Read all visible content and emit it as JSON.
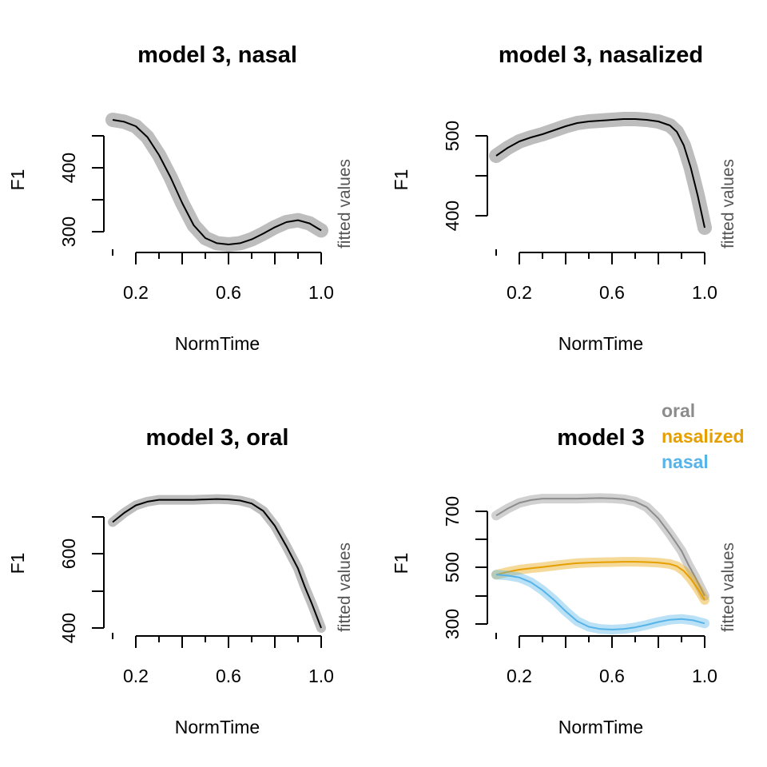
{
  "colors": {
    "oral": "#8c8c8c",
    "nasalized": "#e69f00",
    "nasal": "#56b4e9",
    "line": "#000000",
    "band": "#bdbdbd"
  },
  "chart_data": [
    {
      "type": "line",
      "title": "model 3, nasal",
      "xlabel": "NormTime",
      "ylabel": "F1",
      "side_label": "fitted values",
      "xlim": [
        0.1,
        1.0
      ],
      "ylim": [
        270,
        480
      ],
      "xticks": [
        "0.2",
        "0.6",
        "1.0"
      ],
      "yticks": [
        "300",
        "400"
      ],
      "series": [
        {
          "color_key": "line",
          "band_key": "band",
          "band_width": 8,
          "x": [
            0.1,
            0.15,
            0.2,
            0.25,
            0.3,
            0.35,
            0.4,
            0.45,
            0.5,
            0.55,
            0.6,
            0.65,
            0.7,
            0.75,
            0.8,
            0.85,
            0.9,
            0.95,
            1.0
          ],
          "y": [
            475,
            472,
            465,
            448,
            420,
            385,
            345,
            310,
            290,
            282,
            280,
            282,
            288,
            297,
            307,
            315,
            318,
            313,
            302
          ]
        }
      ]
    },
    {
      "type": "line",
      "title": "model 3, nasalized",
      "xlabel": "NormTime",
      "ylabel": "F1",
      "side_label": "fitted values",
      "xlim": [
        0.1,
        1.0
      ],
      "ylim": [
        370,
        530
      ],
      "xticks": [
        "0.2",
        "0.6",
        "1.0"
      ],
      "yticks": [
        "400",
        "500"
      ],
      "series": [
        {
          "color_key": "line",
          "band_key": "band",
          "band_width": 8,
          "x": [
            0.1,
            0.15,
            0.2,
            0.25,
            0.3,
            0.35,
            0.4,
            0.45,
            0.5,
            0.55,
            0.6,
            0.65,
            0.7,
            0.75,
            0.8,
            0.85,
            0.88,
            0.91,
            0.94,
            0.97,
            1.0
          ],
          "y": [
            475,
            485,
            493,
            498,
            502,
            507,
            512,
            516,
            518,
            519,
            520,
            521,
            521,
            520,
            518,
            513,
            505,
            488,
            460,
            425,
            385
          ]
        }
      ]
    },
    {
      "type": "line",
      "title": "model 3, oral",
      "xlabel": "NormTime",
      "ylabel": "F1",
      "side_label": "fitted values",
      "xlim": [
        0.1,
        1.0
      ],
      "ylim": [
        400,
        780
      ],
      "xticks": [
        "0.2",
        "0.6",
        "1.0"
      ],
      "yticks": [
        "400",
        "600"
      ],
      "series": [
        {
          "color_key": "line",
          "band_key": "band",
          "band_width": 5,
          "x": [
            0.1,
            0.15,
            0.2,
            0.25,
            0.3,
            0.35,
            0.4,
            0.45,
            0.5,
            0.55,
            0.6,
            0.65,
            0.7,
            0.75,
            0.8,
            0.85,
            0.9,
            0.93,
            0.96,
            1.0
          ],
          "y": [
            685,
            710,
            730,
            740,
            745,
            745,
            745,
            745,
            746,
            747,
            746,
            743,
            735,
            715,
            675,
            620,
            560,
            510,
            465,
            400
          ]
        }
      ]
    },
    {
      "type": "line",
      "title": "model 3",
      "xlabel": "NormTime",
      "ylabel": "F1",
      "side_label": "fitted values",
      "xlim": [
        0.1,
        1.0
      ],
      "ylim": [
        300,
        800
      ],
      "xticks": [
        "0.2",
        "0.6",
        "1.0"
      ],
      "yticks": [
        "300",
        "500",
        "700"
      ],
      "legend": {
        "position": "top-right",
        "entries": [
          {
            "label": "oral",
            "color_key": "oral"
          },
          {
            "label": "nasalized",
            "color_key": "nasalized"
          },
          {
            "label": "nasal",
            "color_key": "nasal"
          }
        ]
      },
      "series": [
        {
          "name": "oral",
          "color_key": "oral",
          "band_key": "oral",
          "band_width": 5,
          "x": [
            0.1,
            0.15,
            0.2,
            0.25,
            0.3,
            0.35,
            0.4,
            0.45,
            0.5,
            0.55,
            0.6,
            0.65,
            0.7,
            0.75,
            0.8,
            0.85,
            0.9,
            0.93,
            0.96,
            1.0
          ],
          "y": [
            685,
            710,
            730,
            740,
            745,
            745,
            745,
            745,
            746,
            747,
            746,
            743,
            735,
            715,
            675,
            620,
            560,
            510,
            465,
            400
          ]
        },
        {
          "name": "nasalized",
          "color_key": "nasalized",
          "band_key": "nasalized",
          "band_width": 5,
          "x": [
            0.1,
            0.15,
            0.2,
            0.25,
            0.3,
            0.35,
            0.4,
            0.45,
            0.5,
            0.55,
            0.6,
            0.65,
            0.7,
            0.75,
            0.8,
            0.85,
            0.88,
            0.91,
            0.94,
            0.97,
            1.0
          ],
          "y": [
            475,
            485,
            493,
            498,
            502,
            507,
            512,
            516,
            518,
            519,
            520,
            521,
            521,
            520,
            518,
            513,
            505,
            488,
            460,
            425,
            385
          ]
        },
        {
          "name": "nasal",
          "color_key": "nasal",
          "band_key": "nasal",
          "band_width": 5,
          "x": [
            0.1,
            0.15,
            0.2,
            0.25,
            0.3,
            0.35,
            0.4,
            0.45,
            0.5,
            0.55,
            0.6,
            0.65,
            0.7,
            0.75,
            0.8,
            0.85,
            0.9,
            0.95,
            1.0
          ],
          "y": [
            475,
            472,
            465,
            448,
            420,
            385,
            345,
            310,
            290,
            282,
            280,
            282,
            288,
            297,
            307,
            315,
            318,
            313,
            302
          ]
        }
      ]
    }
  ]
}
